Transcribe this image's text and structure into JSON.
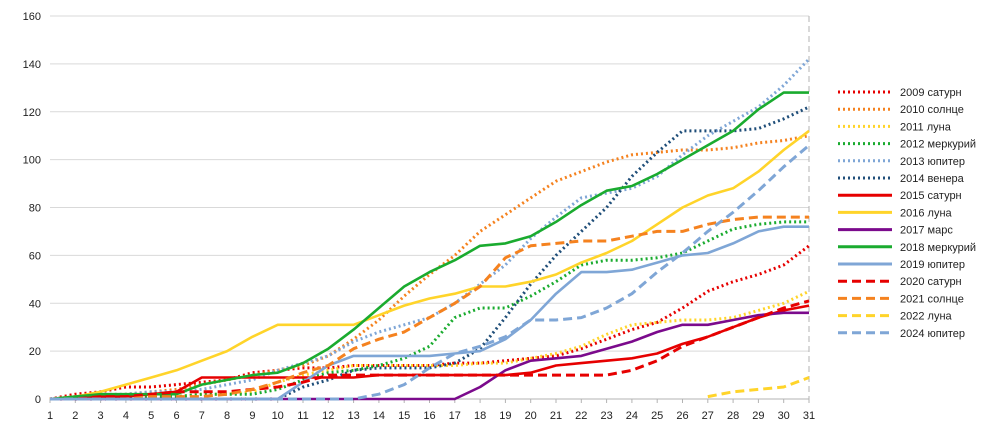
{
  "chart_data": {
    "type": "line",
    "x": [
      1,
      2,
      3,
      4,
      5,
      6,
      7,
      8,
      9,
      10,
      11,
      12,
      13,
      14,
      15,
      16,
      17,
      18,
      19,
      20,
      21,
      22,
      23,
      24,
      25,
      26,
      27,
      28,
      29,
      30,
      31
    ],
    "xlim": [
      1,
      31
    ],
    "ylim": [
      0,
      160
    ],
    "y_ticks": [
      0,
      20,
      40,
      60,
      80,
      100,
      120,
      140,
      160
    ],
    "grid": "horizontal",
    "legend_position": "right",
    "series": [
      {
        "name": "2009 сатурн",
        "color": "#e60000",
        "dash": "dot",
        "values": [
          0,
          2,
          3,
          5,
          5,
          6,
          7,
          8,
          11,
          12,
          13,
          13,
          14,
          14,
          14,
          14,
          15,
          15,
          16,
          17,
          18,
          21,
          25,
          29,
          32,
          38,
          45,
          49,
          52,
          56,
          64
        ]
      },
      {
        "name": "2010 солнце",
        "color": "#f5821f",
        "dash": "dot",
        "values": [
          0,
          1,
          1,
          2,
          3,
          4,
          6,
          8,
          10,
          12,
          14,
          18,
          25,
          33,
          43,
          52,
          60,
          70,
          77,
          84,
          91,
          95,
          99,
          102,
          103,
          104,
          104,
          105,
          107,
          108,
          110
        ]
      },
      {
        "name": "2011 луна",
        "color": "#ffd42a",
        "dash": "dot",
        "values": [
          0,
          0,
          0,
          1,
          1,
          1,
          2,
          2,
          3,
          7,
          10,
          12,
          14,
          14,
          14,
          14,
          14,
          15,
          15,
          17,
          19,
          22,
          27,
          31,
          32,
          33,
          33,
          34,
          37,
          40,
          45
        ]
      },
      {
        "name": "2012 меркурий",
        "color": "#1aab2f",
        "dash": "dot",
        "values": [
          0,
          1,
          1,
          1,
          1,
          1,
          2,
          2,
          2,
          4,
          8,
          11,
          12,
          14,
          17,
          22,
          34,
          38,
          38,
          43,
          49,
          56,
          58,
          58,
          59,
          61,
          66,
          71,
          73,
          74,
          74
        ]
      },
      {
        "name": "2013 юпитер",
        "color": "#7fa6d6",
        "dash": "dot",
        "values": [
          0,
          1,
          2,
          2,
          3,
          3,
          4,
          6,
          8,
          12,
          15,
          18,
          24,
          28,
          31,
          34,
          40,
          48,
          56,
          67,
          76,
          84,
          86,
          88,
          93,
          102,
          110,
          116,
          122,
          131,
          142
        ]
      },
      {
        "name": "2014 венера",
        "color": "#1f4e79",
        "dash": "dot",
        "values": [
          0,
          0,
          0,
          0,
          0,
          0,
          0,
          0,
          0,
          0,
          5,
          8,
          12,
          13,
          13,
          13,
          15,
          21,
          34,
          48,
          60,
          70,
          80,
          93,
          103,
          112,
          112,
          112,
          113,
          117,
          122
        ]
      },
      {
        "name": "2015 сатурн",
        "color": "#e60000",
        "dash": "solid",
        "values": [
          0,
          1,
          1,
          1,
          2,
          3,
          9,
          9,
          9,
          9,
          9,
          9,
          9,
          10,
          10,
          10,
          10,
          10,
          10,
          11,
          14,
          15,
          16,
          17,
          19,
          23,
          26,
          30,
          34,
          37,
          39
        ]
      },
      {
        "name": "2016 луна",
        "color": "#ffd42a",
        "dash": "solid",
        "values": [
          0,
          1,
          3,
          6,
          9,
          12,
          16,
          20,
          26,
          31,
          31,
          31,
          31,
          35,
          39,
          42,
          44,
          47,
          47,
          49,
          52,
          57,
          61,
          66,
          73,
          80,
          85,
          88,
          95,
          104,
          112
        ]
      },
      {
        "name": "2017 марс",
        "color": "#7b0a8c",
        "dash": "solid",
        "values": [
          0,
          0,
          0,
          0,
          0,
          0,
          0,
          0,
          0,
          0,
          0,
          0,
          0,
          0,
          0,
          0,
          0,
          5,
          12,
          16,
          17,
          18,
          21,
          24,
          28,
          31,
          31,
          33,
          35,
          36,
          36
        ]
      },
      {
        "name": "2018 меркурий",
        "color": "#1aab2f",
        "dash": "solid",
        "values": [
          0,
          1,
          2,
          2,
          2,
          2,
          6,
          8,
          10,
          11,
          15,
          21,
          29,
          38,
          47,
          53,
          58,
          64,
          65,
          68,
          74,
          81,
          87,
          89,
          94,
          100,
          106,
          112,
          121,
          128,
          128
        ]
      },
      {
        "name": "2019 юпитер",
        "color": "#7fa6d6",
        "dash": "solid",
        "values": [
          0,
          0,
          0,
          0,
          0,
          0,
          0,
          0,
          0,
          0,
          7,
          14,
          18,
          18,
          18,
          18,
          19,
          20,
          25,
          33,
          44,
          53,
          53,
          54,
          57,
          60,
          61,
          65,
          70,
          72,
          72
        ]
      },
      {
        "name": "2020 сатурн",
        "color": "#e60000",
        "dash": "dash",
        "values": [
          0,
          0,
          1,
          1,
          2,
          3,
          3,
          3,
          4,
          5,
          7,
          10,
          10,
          10,
          10,
          10,
          10,
          10,
          10,
          10,
          10,
          10,
          10,
          12,
          16,
          22,
          26,
          30,
          34,
          38,
          41
        ]
      },
      {
        "name": "2021 солнце",
        "color": "#f5821f",
        "dash": "dash",
        "values": [
          0,
          0,
          0,
          0,
          1,
          1,
          1,
          2,
          4,
          7,
          11,
          14,
          21,
          25,
          28,
          34,
          40,
          47,
          59,
          64,
          65,
          66,
          66,
          68,
          70,
          70,
          73,
          75,
          76,
          76,
          76
        ]
      },
      {
        "name": "2022 луна",
        "color": "#ffd42a",
        "dash": "dash",
        "values": [
          null,
          null,
          null,
          null,
          null,
          null,
          null,
          null,
          null,
          null,
          null,
          null,
          null,
          null,
          null,
          null,
          null,
          null,
          null,
          null,
          null,
          null,
          null,
          null,
          null,
          null,
          1,
          3,
          4,
          5,
          9
        ]
      },
      {
        "name": "2024 юпитер",
        "color": "#7fa6d6",
        "dash": "dash",
        "values": [
          0,
          0,
          0,
          0,
          0,
          0,
          0,
          0,
          0,
          0,
          0,
          0,
          0,
          2,
          6,
          13,
          19,
          22,
          26,
          33,
          33,
          34,
          38,
          44,
          53,
          61,
          70,
          78,
          87,
          97,
          106
        ]
      }
    ]
  }
}
